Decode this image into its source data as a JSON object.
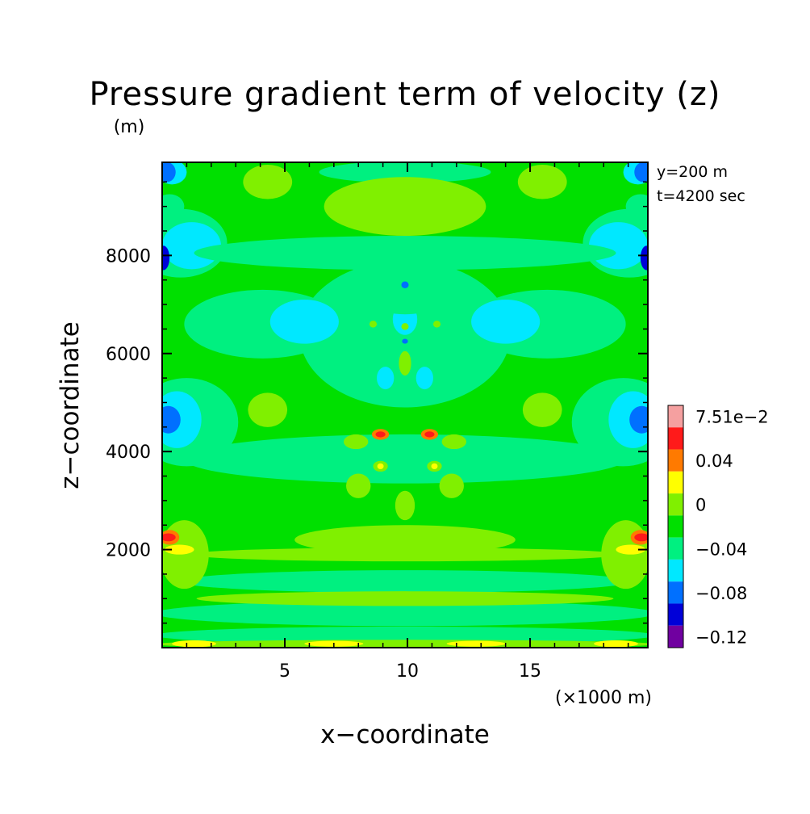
{
  "chart_data": {
    "type": "heatmap",
    "title": "Pressure gradient term of velocity (z)",
    "unit_label": "(m)",
    "xlabel": "x−coordinate",
    "ylabel": "z−coordinate",
    "x_unit": "(×1000 m)",
    "xlim": [
      0,
      19.8
    ],
    "ylim": [
      0,
      9900
    ],
    "x_ticks": [
      5,
      10,
      15
    ],
    "x_tick_labels": [
      "5",
      "10",
      "15"
    ],
    "y_ticks": [
      2000,
      4000,
      6000,
      8000
    ],
    "y_tick_labels": [
      "2000",
      "4000",
      "6000",
      "8000"
    ],
    "info_lines": [
      "y=200 m",
      "t=4200 sec"
    ],
    "colorbar": {
      "labels": [
        "7.51e−2",
        "0.04",
        "0",
        "−0.04",
        "−0.08",
        "−0.12"
      ],
      "colors": [
        "#f5a0a0",
        "#ff1a1a",
        "#ff7a00",
        "#ffff00",
        "#80f000",
        "#00e000",
        "#00f080",
        "#00e8ff",
        "#0070ff",
        "#0000d8",
        "#7000a0"
      ]
    },
    "field": {
      "background": {
        "level": -0.03,
        "color": "#00e000"
      },
      "regions": [
        {
          "x": 0.75,
          "z": 8250,
          "rx": 1.9,
          "rz": 700,
          "level": -0.06,
          "color": "#00f080"
        },
        {
          "x": 19.05,
          "z": 8250,
          "rx": 1.9,
          "rz": 700,
          "level": -0.06,
          "color": "#00f080"
        },
        {
          "x": 1.2,
          "z": 8200,
          "rx": 1.2,
          "rz": 480,
          "level": -0.08,
          "color": "#00e8ff"
        },
        {
          "x": 18.6,
          "z": 8200,
          "rx": 1.2,
          "rz": 480,
          "level": -0.08,
          "color": "#00e8ff"
        },
        {
          "x": 0.05,
          "z": 7950,
          "rx": 0.25,
          "rz": 250,
          "level": -0.11,
          "color": "#0000d8"
        },
        {
          "x": 19.75,
          "z": 7950,
          "rx": 0.25,
          "rz": 250,
          "level": -0.11,
          "color": "#0000d8"
        },
        {
          "x": 0.4,
          "z": 9700,
          "rx": 0.6,
          "rz": 250,
          "level": -0.08,
          "color": "#00e8ff"
        },
        {
          "x": 19.4,
          "z": 9700,
          "rx": 0.6,
          "rz": 250,
          "level": -0.08,
          "color": "#00e8ff"
        },
        {
          "x": 0.2,
          "z": 9700,
          "rx": 0.35,
          "rz": 200,
          "level": -0.1,
          "color": "#0070ff"
        },
        {
          "x": 19.6,
          "z": 9700,
          "rx": 0.35,
          "rz": 200,
          "level": -0.1,
          "color": "#0070ff"
        },
        {
          "x": 0.3,
          "z": 9000,
          "rx": 0.6,
          "rz": 250,
          "level": -0.06,
          "color": "#00f080"
        },
        {
          "x": 19.5,
          "z": 9000,
          "rx": 0.6,
          "rz": 250,
          "level": -0.06,
          "color": "#00f080"
        },
        {
          "x": 9.9,
          "z": 6400,
          "rx": 4.3,
          "rz": 1500,
          "level": -0.06,
          "color": "#00f080"
        },
        {
          "x": 4.1,
          "z": 6600,
          "rx": 3.2,
          "rz": 700,
          "level": -0.06,
          "color": "#00f080"
        },
        {
          "x": 15.7,
          "z": 6600,
          "rx": 3.2,
          "rz": 700,
          "level": -0.06,
          "color": "#00f080"
        },
        {
          "x": 1.0,
          "z": 4600,
          "rx": 2.1,
          "rz": 900,
          "level": -0.06,
          "color": "#00f080"
        },
        {
          "x": 18.8,
          "z": 4600,
          "rx": 2.1,
          "rz": 900,
          "level": -0.06,
          "color": "#00f080"
        },
        {
          "x": 0.6,
          "z": 4650,
          "rx": 1.0,
          "rz": 580,
          "level": -0.08,
          "color": "#00e8ff"
        },
        {
          "x": 19.2,
          "z": 4650,
          "rx": 1.0,
          "rz": 580,
          "level": -0.08,
          "color": "#00e8ff"
        },
        {
          "x": 0.25,
          "z": 4650,
          "rx": 0.5,
          "rz": 280,
          "level": -0.1,
          "color": "#0070ff"
        },
        {
          "x": 19.55,
          "z": 4650,
          "rx": 0.5,
          "rz": 280,
          "level": -0.1,
          "color": "#0070ff"
        },
        {
          "x": 5.8,
          "z": 6650,
          "rx": 1.4,
          "rz": 450,
          "level": -0.08,
          "color": "#00e8ff"
        },
        {
          "x": 14.0,
          "z": 6650,
          "rx": 1.4,
          "rz": 450,
          "level": -0.08,
          "color": "#00e8ff"
        },
        {
          "x": 9.9,
          "z": 6700,
          "rx": 0.5,
          "rz": 320,
          "level": -0.08,
          "color": "#00e8ff"
        },
        {
          "x": 9.1,
          "z": 5500,
          "rx": 0.35,
          "rz": 230,
          "level": -0.08,
          "color": "#00e8ff"
        },
        {
          "x": 10.7,
          "z": 5500,
          "rx": 0.35,
          "rz": 230,
          "level": -0.08,
          "color": "#00e8ff"
        },
        {
          "x": 9.9,
          "z": 7450,
          "rx": 2.3,
          "rz": 650,
          "level": -0.06,
          "color": "#00f080"
        },
        {
          "x": 9.9,
          "z": 8050,
          "rx": 8.6,
          "rz": 350,
          "level": -0.06,
          "color": "#00f080"
        },
        {
          "x": 9.9,
          "z": 3850,
          "rx": 9.0,
          "rz": 500,
          "level": -0.06,
          "color": "#00f080"
        },
        {
          "x": 9.9,
          "z": 1350,
          "rx": 9.2,
          "rz": 230,
          "level": -0.06,
          "color": "#00f080"
        },
        {
          "x": 9.9,
          "z": 700,
          "rx": 10.2,
          "rz": 260,
          "level": -0.06,
          "color": "#00f080"
        },
        {
          "x": 9.9,
          "z": 250,
          "rx": 10.2,
          "rz": 180,
          "level": -0.06,
          "color": "#00f080"
        },
        {
          "x": 9.9,
          "z": 9700,
          "rx": 3.5,
          "rz": 220,
          "level": -0.06,
          "color": "#00f080"
        },
        {
          "x": 9.9,
          "z": 9000,
          "rx": 3.3,
          "rz": 600,
          "level": -0.02,
          "color": "#80f000"
        },
        {
          "x": 4.3,
          "z": 9500,
          "rx": 1.0,
          "rz": 350,
          "level": -0.02,
          "color": "#80f000"
        },
        {
          "x": 15.5,
          "z": 9500,
          "rx": 1.0,
          "rz": 350,
          "level": -0.02,
          "color": "#80f000"
        },
        {
          "x": 4.3,
          "z": 4850,
          "rx": 0.8,
          "rz": 350,
          "level": -0.02,
          "color": "#80f000"
        },
        {
          "x": 15.5,
          "z": 4850,
          "rx": 0.8,
          "rz": 350,
          "level": -0.02,
          "color": "#80f000"
        },
        {
          "x": 9.9,
          "z": 2200,
          "rx": 4.5,
          "rz": 300,
          "level": -0.02,
          "color": "#80f000"
        },
        {
          "x": 9.9,
          "z": 1900,
          "rx": 8.8,
          "rz": 140,
          "level": -0.02,
          "color": "#80f000"
        },
        {
          "x": 9.9,
          "z": 1000,
          "rx": 8.5,
          "rz": 150,
          "level": -0.02,
          "color": "#80f000"
        },
        {
          "x": 0.9,
          "z": 1900,
          "rx": 1.0,
          "rz": 700,
          "level": -0.02,
          "color": "#80f000"
        },
        {
          "x": 18.9,
          "z": 1900,
          "rx": 1.0,
          "rz": 700,
          "level": -0.02,
          "color": "#80f000"
        },
        {
          "x": 9.9,
          "z": 70,
          "rx": 10.2,
          "rz": 90,
          "level": -0.02,
          "color": "#80f000"
        },
        {
          "x": 1.3,
          "z": 80,
          "rx": 0.9,
          "rz": 70,
          "level": 0.01,
          "color": "#ffff00"
        },
        {
          "x": 18.5,
          "z": 80,
          "rx": 0.9,
          "rz": 70,
          "level": 0.01,
          "color": "#ffff00"
        },
        {
          "x": 7.0,
          "z": 80,
          "rx": 1.2,
          "rz": 60,
          "level": 0.01,
          "color": "#ffff00"
        },
        {
          "x": 12.8,
          "z": 80,
          "rx": 1.2,
          "rz": 60,
          "level": 0.01,
          "color": "#ffff00"
        },
        {
          "x": 0.7,
          "z": 2000,
          "rx": 0.6,
          "rz": 100,
          "level": 0.01,
          "color": "#ffff00"
        },
        {
          "x": 19.1,
          "z": 2000,
          "rx": 0.6,
          "rz": 100,
          "level": 0.01,
          "color": "#ffff00"
        },
        {
          "x": 0.3,
          "z": 2250,
          "rx": 0.4,
          "rz": 150,
          "level": 0.03,
          "color": "#ff7a00"
        },
        {
          "x": 19.5,
          "z": 2250,
          "rx": 0.4,
          "rz": 150,
          "level": 0.03,
          "color": "#ff7a00"
        },
        {
          "x": 0.25,
          "z": 2250,
          "rx": 0.3,
          "rz": 80,
          "level": 0.06,
          "color": "#ff1a1a"
        },
        {
          "x": 19.55,
          "z": 2250,
          "rx": 0.3,
          "rz": 80,
          "level": 0.06,
          "color": "#ff1a1a"
        },
        {
          "x": 9.9,
          "z": 2900,
          "rx": 0.4,
          "rz": 300,
          "level": -0.02,
          "color": "#80f000"
        },
        {
          "x": 8.0,
          "z": 3300,
          "rx": 0.5,
          "rz": 250,
          "level": -0.02,
          "color": "#80f000"
        },
        {
          "x": 11.8,
          "z": 3300,
          "rx": 0.5,
          "rz": 250,
          "level": -0.02,
          "color": "#80f000"
        },
        {
          "x": 7.9,
          "z": 4200,
          "rx": 0.5,
          "rz": 150,
          "level": -0.02,
          "color": "#80f000"
        },
        {
          "x": 11.9,
          "z": 4200,
          "rx": 0.5,
          "rz": 150,
          "level": -0.02,
          "color": "#80f000"
        },
        {
          "x": 8.9,
          "z": 4350,
          "rx": 0.35,
          "rz": 110,
          "level": 0.03,
          "color": "#ff7a00"
        },
        {
          "x": 10.9,
          "z": 4350,
          "rx": 0.35,
          "rz": 110,
          "level": 0.03,
          "color": "#ff7a00"
        },
        {
          "x": 8.9,
          "z": 4350,
          "rx": 0.2,
          "rz": 60,
          "level": 0.06,
          "color": "#ff1a1a"
        },
        {
          "x": 10.9,
          "z": 4350,
          "rx": 0.2,
          "rz": 60,
          "level": 0.06,
          "color": "#ff1a1a"
        },
        {
          "x": 8.9,
          "z": 3700,
          "rx": 0.3,
          "rz": 110,
          "level": -0.02,
          "color": "#80f000"
        },
        {
          "x": 11.1,
          "z": 3700,
          "rx": 0.3,
          "rz": 110,
          "level": -0.02,
          "color": "#80f000"
        },
        {
          "x": 8.9,
          "z": 3700,
          "rx": 0.13,
          "rz": 60,
          "level": 0.01,
          "color": "#ffff00"
        },
        {
          "x": 11.1,
          "z": 3700,
          "rx": 0.13,
          "rz": 60,
          "level": 0.01,
          "color": "#ffff00"
        },
        {
          "x": 9.9,
          "z": 7400,
          "rx": 0.15,
          "rz": 70,
          "level": -0.1,
          "color": "#0070ff"
        },
        {
          "x": 9.9,
          "z": 6250,
          "rx": 0.12,
          "rz": 50,
          "level": -0.1,
          "color": "#0070ff"
        },
        {
          "x": 9.9,
          "z": 5800,
          "rx": 0.25,
          "rz": 250,
          "level": -0.02,
          "color": "#80f000"
        },
        {
          "x": 9.9,
          "z": 6550,
          "rx": 0.15,
          "rz": 70,
          "level": -0.02,
          "color": "#80f000"
        },
        {
          "x": 8.6,
          "z": 6600,
          "rx": 0.15,
          "rz": 70,
          "level": -0.02,
          "color": "#80f000"
        },
        {
          "x": 11.2,
          "z": 6600,
          "rx": 0.15,
          "rz": 70,
          "level": -0.02,
          "color": "#80f000"
        }
      ]
    }
  }
}
